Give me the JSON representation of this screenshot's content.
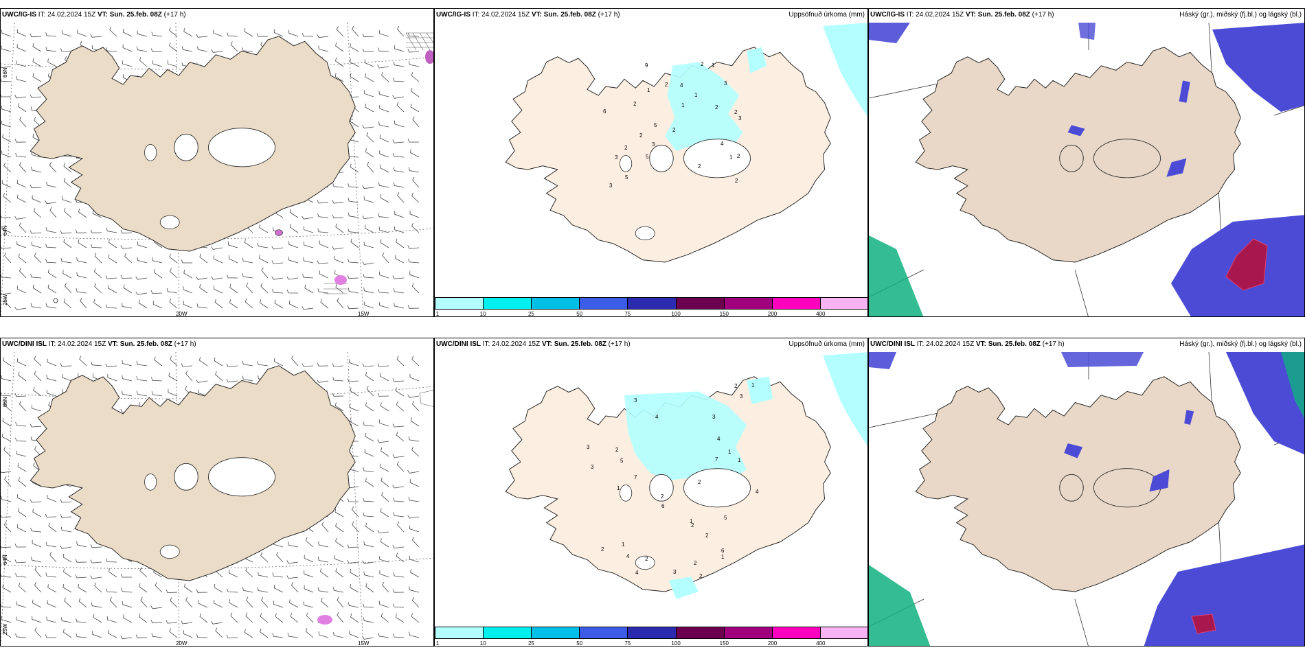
{
  "rows": [
    {
      "model": "UWC/IG-IS",
      "it_label": "IT:",
      "it_value": "24.02.2024 15Z",
      "vt_label": "VT:",
      "vt_value": "Sun. 25.feb. 08Z",
      "lead": "(+17 h)"
    },
    {
      "model": "UWC/DINI ISL",
      "it_label": "IT:",
      "it_value": "24.02.2024 15Z",
      "vt_label": "VT:",
      "vt_value": "Sun. 25.feb. 08Z",
      "lead": "(+17 h)"
    }
  ],
  "precip_title": "Uppsöfnuð úrkoma (mm)",
  "cloud_title": "Háský (gr.), miðský (fj.bl.) og lágský (bl.)",
  "lat_labels": [
    "66N",
    "64N",
    "25W"
  ],
  "lon_labels": [
    "20W",
    "15W"
  ],
  "colorbar": {
    "colors": [
      "#b3ffff",
      "#00f0f0",
      "#00bfe6",
      "#3a5ce6",
      "#2b2bb0",
      "#6b004f",
      "#a0007e",
      "#ff00bf",
      "#f7b3f2"
    ],
    "labels": [
      "1",
      "10",
      "25",
      "50",
      "75",
      "100",
      "150",
      "200",
      "400"
    ]
  },
  "precip_numbers_top": [
    "1",
    "2",
    "1",
    "3",
    "5",
    "2",
    "3",
    "2",
    "1",
    "3",
    "2",
    "4",
    "2",
    "5",
    "3",
    "2",
    "2",
    "6",
    "9",
    "2",
    "2",
    "4",
    "5",
    "2",
    "1",
    "1",
    "3",
    "2"
  ],
  "precip_numbers_bottom": [
    "2",
    "3",
    "1",
    "2",
    "1",
    "2",
    "4",
    "7",
    "6",
    "4",
    "2",
    "3",
    "2",
    "1",
    "7",
    "2",
    "3",
    "3",
    "5",
    "1",
    "6",
    "2",
    "4",
    "1",
    "2",
    "4",
    "1",
    "5",
    "3",
    "4",
    "2",
    "1",
    "3",
    "2"
  ],
  "colors": {
    "land_wind": "#ebdcc8",
    "land_precip": "#fcefe2",
    "land_cloud": "#e9d8c7",
    "precip_light": "#b3ffff",
    "cloud_blue": "#4b4bd6",
    "cloud_dark": "#3a3ab8",
    "cloud_red": "#a8184f",
    "cloud_green": "#10b080"
  }
}
